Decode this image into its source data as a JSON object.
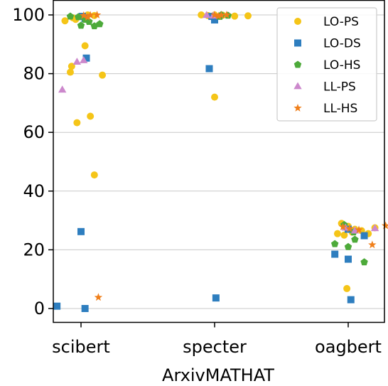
{
  "chart_data": {
    "type": "scatter",
    "title": "",
    "xlabel": "ArxivMATHAT",
    "ylabel": "",
    "categories": [
      "scibert",
      "specter",
      "oagbert"
    ],
    "yticks": [
      0,
      20,
      40,
      60,
      80,
      100
    ],
    "ylim": [
      -5,
      104
    ],
    "grid": "horizontal",
    "legend_position": "top-right",
    "series": [
      {
        "name": "LO-PS",
        "marker": "circle",
        "color": "#F5C518",
        "points": [
          {
            "c": 0,
            "j": -0.12,
            "y": 98
          },
          {
            "c": 0,
            "j": -0.06,
            "y": 99
          },
          {
            "c": 0,
            "j": 0.02,
            "y": 99.5
          },
          {
            "c": 0,
            "j": 0.05,
            "y": 100
          },
          {
            "c": 0,
            "j": 0.1,
            "y": 99.8
          },
          {
            "c": 0,
            "j": -0.04,
            "y": 98.5
          },
          {
            "c": 0,
            "j": 0.03,
            "y": 89.5
          },
          {
            "c": 0,
            "j": -0.07,
            "y": 82.5
          },
          {
            "c": 0,
            "j": -0.08,
            "y": 80.5
          },
          {
            "c": 0,
            "j": 0.16,
            "y": 79.5
          },
          {
            "c": 0,
            "j": 0.07,
            "y": 65.5
          },
          {
            "c": 0,
            "j": -0.03,
            "y": 63.3
          },
          {
            "c": 0,
            "j": 0.1,
            "y": 45.5
          },
          {
            "c": 1,
            "j": -0.1,
            "y": 100
          },
          {
            "c": 1,
            "j": -0.05,
            "y": 99.8
          },
          {
            "c": 1,
            "j": 0.0,
            "y": 100
          },
          {
            "c": 1,
            "j": 0.06,
            "y": 99.9
          },
          {
            "c": 1,
            "j": 0.15,
            "y": 99.6
          },
          {
            "c": 1,
            "j": 0.25,
            "y": 99.7
          },
          {
            "c": 1,
            "j": 0.0,
            "y": 72
          },
          {
            "c": 2,
            "j": -0.05,
            "y": 29
          },
          {
            "c": 2,
            "j": 0.0,
            "y": 28
          },
          {
            "c": 2,
            "j": 0.03,
            "y": 26
          },
          {
            "c": 2,
            "j": -0.03,
            "y": 25
          },
          {
            "c": 2,
            "j": -0.08,
            "y": 25.5
          },
          {
            "c": 2,
            "j": 0.05,
            "y": 27
          },
          {
            "c": 2,
            "j": 0.1,
            "y": 26.5
          },
          {
            "c": 2,
            "j": 0.15,
            "y": 25.5
          },
          {
            "c": 2,
            "j": 0.2,
            "y": 27.5
          },
          {
            "c": 2,
            "j": -0.01,
            "y": 6.8
          }
        ]
      },
      {
        "name": "LO-DS",
        "marker": "square",
        "color": "#2E7EBF",
        "points": [
          {
            "c": 0,
            "j": 0.01,
            "y": 99.5
          },
          {
            "c": 0,
            "j": 0.03,
            "y": 98.8
          },
          {
            "c": 0,
            "j": 0.04,
            "y": 85.3
          },
          {
            "c": 0,
            "j": 0.0,
            "y": 26.2
          },
          {
            "c": 0,
            "j": -0.18,
            "y": 0.8
          },
          {
            "c": 0,
            "j": 0.03,
            "y": 0
          },
          {
            "c": 1,
            "j": -0.02,
            "y": 99.5
          },
          {
            "c": 1,
            "j": 0.0,
            "y": 98.3
          },
          {
            "c": 1,
            "j": -0.04,
            "y": 81.7
          },
          {
            "c": 1,
            "j": 0.01,
            "y": 3.6
          },
          {
            "c": 2,
            "j": 0.0,
            "y": 27
          },
          {
            "c": 2,
            "j": 0.12,
            "y": 24.8
          },
          {
            "c": 2,
            "j": -0.1,
            "y": 18.5
          },
          {
            "c": 2,
            "j": 0.0,
            "y": 16.8
          },
          {
            "c": 2,
            "j": 0.02,
            "y": 3
          }
        ]
      },
      {
        "name": "LO-HS",
        "marker": "pentagon",
        "color": "#4DAA3A",
        "points": [
          {
            "c": 0,
            "j": -0.08,
            "y": 99.5
          },
          {
            "c": 0,
            "j": -0.02,
            "y": 99.3
          },
          {
            "c": 0,
            "j": 0.03,
            "y": 98.4
          },
          {
            "c": 0,
            "j": 0.06,
            "y": 97.7
          },
          {
            "c": 0,
            "j": 0.0,
            "y": 96.4
          },
          {
            "c": 0,
            "j": 0.1,
            "y": 96.2
          },
          {
            "c": 0,
            "j": 0.14,
            "y": 96.9
          },
          {
            "c": 1,
            "j": 0.04,
            "y": 99.4
          },
          {
            "c": 1,
            "j": 0.1,
            "y": 99.8
          },
          {
            "c": 1,
            "j": 0.05,
            "y": 100
          },
          {
            "c": 2,
            "j": -0.03,
            "y": 28.5
          },
          {
            "c": 2,
            "j": 0.04,
            "y": 26
          },
          {
            "c": 2,
            "j": -0.1,
            "y": 22
          },
          {
            "c": 2,
            "j": 0.0,
            "y": 21
          },
          {
            "c": 2,
            "j": 0.05,
            "y": 23.5
          },
          {
            "c": 2,
            "j": 0.12,
            "y": 15.8
          }
        ]
      },
      {
        "name": "LL-PS",
        "marker": "triangle",
        "color": "#CC88CC",
        "points": [
          {
            "c": 0,
            "j": -0.03,
            "y": 84
          },
          {
            "c": 0,
            "j": 0.02,
            "y": 84.5
          },
          {
            "c": 0,
            "j": -0.14,
            "y": 74.5
          },
          {
            "c": 1,
            "j": -0.06,
            "y": 99.9
          },
          {
            "c": 1,
            "j": -0.01,
            "y": 99.7
          },
          {
            "c": 2,
            "j": -0.02,
            "y": 27.5
          },
          {
            "c": 2,
            "j": 0.05,
            "y": 26.5
          },
          {
            "c": 2,
            "j": 0.2,
            "y": 27.3
          }
        ]
      },
      {
        "name": "LL-HS",
        "marker": "star",
        "color": "#F07F1A",
        "points": [
          {
            "c": 0,
            "j": 0.02,
            "y": 99.8
          },
          {
            "c": 0,
            "j": 0.07,
            "y": 99.9
          },
          {
            "c": 0,
            "j": 0.12,
            "y": 100
          },
          {
            "c": 0,
            "j": 0.05,
            "y": 99.2
          },
          {
            "c": 0,
            "j": 0.13,
            "y": 3.8
          },
          {
            "c": 1,
            "j": 0.0,
            "y": 100
          },
          {
            "c": 1,
            "j": 0.05,
            "y": 99.9
          },
          {
            "c": 1,
            "j": 0.09,
            "y": 100
          },
          {
            "c": 1,
            "j": 0.03,
            "y": 99.6
          },
          {
            "c": 2,
            "j": -0.04,
            "y": 27.8
          },
          {
            "c": 2,
            "j": 0.01,
            "y": 27.2
          },
          {
            "c": 2,
            "j": 0.08,
            "y": 26.8
          },
          {
            "c": 2,
            "j": 0.18,
            "y": 21.7
          },
          {
            "c": 2,
            "j": 0.28,
            "y": 28.2
          }
        ]
      }
    ]
  }
}
